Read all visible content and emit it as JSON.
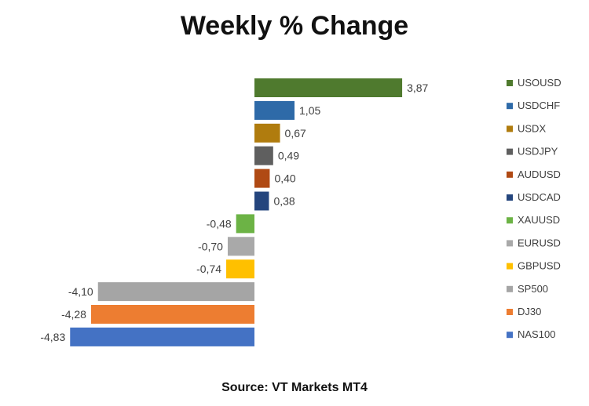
{
  "title": "Weekly % Change",
  "source": "Source: VT Markets MT4",
  "chart_data": {
    "type": "bar",
    "orientation": "horizontal",
    "title": "Weekly % Change",
    "xlabel": "",
    "ylabel": "",
    "grid": false,
    "legend_position": "right",
    "xlim": [
      -5,
      4
    ],
    "categories": [
      "USOUSD",
      "USDCHF",
      "USDX",
      "USDJPY",
      "AUDUSD",
      "USDCAD",
      "XAUUSD",
      "EURUSD",
      "GBPUSD",
      "SP500",
      "DJ30",
      "NAS100"
    ],
    "values": [
      3.87,
      1.05,
      0.67,
      0.49,
      0.4,
      0.38,
      -0.48,
      -0.7,
      -0.74,
      -4.1,
      -4.28,
      -4.83
    ],
    "value_labels": [
      "3,87",
      "1,05",
      "0,67",
      "0,49",
      "0,40",
      "0,38",
      "-0,48",
      "-0,70",
      "-0,74",
      "-4,10",
      "-4,28",
      "-4,83"
    ],
    "colors": [
      "#4f7a2e",
      "#2e6aa8",
      "#b07c0e",
      "#5f5f5f",
      "#b04a14",
      "#24457d",
      "#6cb345",
      "#a9a9a9",
      "#ffc000",
      "#a5a5a5",
      "#ed7d31",
      "#4472c4"
    ]
  }
}
